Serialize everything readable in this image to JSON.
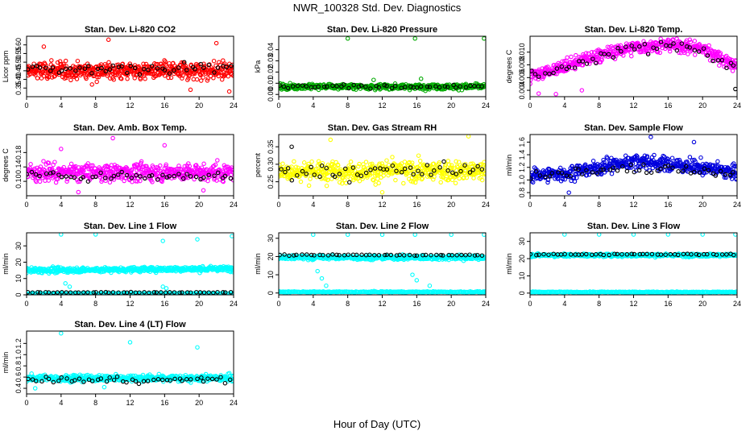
{
  "page": {
    "title": "NWR_100328  Std. Dev. Diagnostics",
    "xlabel": "Hour of Day (UTC)"
  },
  "chart_data": [
    {
      "type": "scatter",
      "title": "Stan. Dev. Li-820 CO2",
      "ylabel": "Licor ppm",
      "xlim": [
        0,
        24
      ],
      "ylim": [
        0.3,
        0.65
      ],
      "x_ticks": [
        "0",
        "4",
        "8",
        "12",
        "16",
        "20",
        "24"
      ],
      "y_ticks": [
        "0.35",
        "0.40",
        "0.45",
        "0.50",
        "0.55",
        "0.60"
      ],
      "series": [
        {
          "color": "#ff0000",
          "pattern": "band",
          "center": [
            [
              0,
              0.45
            ],
            [
              24,
              0.45
            ]
          ],
          "spread": 0.055,
          "outliers": [
            [
              2,
              0.59
            ],
            [
              9.5,
              0.63
            ],
            [
              22,
              0.61
            ],
            [
              23.5,
              0.33
            ],
            [
              19,
              0.34
            ]
          ],
          "count": 520
        },
        {
          "color": "#000000",
          "pattern": "band",
          "center": [
            [
              0,
              0.46
            ],
            [
              24,
              0.47
            ]
          ],
          "spread": 0.03,
          "count": 48
        }
      ]
    },
    {
      "type": "scatter",
      "title": "Stan. Dev. Li-820 Pressure",
      "ylabel": "kPa",
      "xlim": [
        0,
        24
      ],
      "ylim": [
        -0.002,
        0.052
      ],
      "x_ticks": [
        "0",
        "4",
        "8",
        "12",
        "16",
        "20",
        "24"
      ],
      "y_ticks": [
        "0.00",
        "0.01",
        "0.02",
        "0.03",
        "0.04"
      ],
      "series": [
        {
          "color": "#00aa00",
          "pattern": "band",
          "center": [
            [
              0,
              0.007
            ],
            [
              24,
              0.007
            ]
          ],
          "spread": 0.0025,
          "outliers": [
            [
              8,
              0.05
            ],
            [
              15.8,
              0.05
            ],
            [
              23.8,
              0.05
            ],
            [
              11,
              0.013
            ],
            [
              16.5,
              0.014
            ]
          ],
          "count": 520
        },
        {
          "color": "#000000",
          "pattern": "band",
          "center": [
            [
              0,
              0.007
            ],
            [
              24,
              0.007
            ]
          ],
          "spread": 0.0015,
          "count": 48
        }
      ]
    },
    {
      "type": "scatter",
      "title": "Stan. Dev. Li-820 Temp.",
      "ylabel": "degrees C",
      "xlim": [
        0,
        24
      ],
      "ylim": [
        0.003,
        0.0125
      ],
      "x_ticks": [
        "0",
        "4",
        "8",
        "12",
        "16",
        "20",
        "24"
      ],
      "y_ticks": [
        "0.004",
        "0.006",
        "0.008",
        "0.010"
      ],
      "series": [
        {
          "color": "#ff00ff",
          "pattern": "band",
          "center": [
            [
              0,
              0.0062
            ],
            [
              4,
              0.0078
            ],
            [
              8,
              0.0095
            ],
            [
              12,
              0.0108
            ],
            [
              16,
              0.0112
            ],
            [
              20,
              0.0106
            ],
            [
              24,
              0.0078
            ]
          ],
          "spread": 0.0011,
          "outliers": [
            [
              1,
              0.0035
            ],
            [
              3,
              0.0034
            ],
            [
              6,
              0.004
            ]
          ],
          "count": 520
        },
        {
          "color": "#000000",
          "pattern": "band",
          "center": [
            [
              0,
              0.006
            ],
            [
              4,
              0.0076
            ],
            [
              8,
              0.0093
            ],
            [
              12,
              0.0106
            ],
            [
              16,
              0.011
            ],
            [
              20,
              0.0104
            ],
            [
              24,
              0.0075
            ]
          ],
          "spread": 0.0009,
          "outliers": [
            [
              23.8,
              0.0042
            ]
          ],
          "count": 48
        }
      ]
    },
    {
      "type": "scatter",
      "title": "Stan. Dev. Amb. Box Temp.",
      "ylabel": "degrees C",
      "xlim": [
        0,
        24
      ],
      "ylim": [
        0.06,
        0.23
      ],
      "x_ticks": [
        "0",
        "4",
        "8",
        "12",
        "16",
        "20",
        "24"
      ],
      "y_ticks": [
        "0.10",
        "0.14",
        "0.18"
      ],
      "series": [
        {
          "color": "#ff00ff",
          "pattern": "band",
          "center": [
            [
              0,
              0.125
            ],
            [
              24,
              0.125
            ]
          ],
          "spread": 0.025,
          "outliers": [
            [
              10,
              0.22
            ],
            [
              16,
              0.2
            ],
            [
              4,
              0.19
            ],
            [
              6,
              0.07
            ],
            [
              20.5,
              0.075
            ]
          ],
          "count": 520
        },
        {
          "color": "#000000",
          "pattern": "band",
          "center": [
            [
              0,
              0.115
            ],
            [
              24,
              0.115
            ]
          ],
          "spread": 0.012,
          "count": 48
        }
      ]
    },
    {
      "type": "scatter",
      "title": "Stan. Dev. Gas Stream RH",
      "ylabel": "percent",
      "xlim": [
        0,
        24
      ],
      "ylim": [
        0.21,
        0.385
      ],
      "x_ticks": [
        "0",
        "4",
        "8",
        "12",
        "16",
        "20",
        "24"
      ],
      "y_ticks": [
        "0.25",
        "0.30",
        "0.35"
      ],
      "series": [
        {
          "color": "#ffff00",
          "pattern": "band",
          "center": [
            [
              0,
              0.28
            ],
            [
              24,
              0.28
            ]
          ],
          "spread": 0.03,
          "outliers": [
            [
              22,
              0.38
            ],
            [
              6,
              0.37
            ],
            [
              12,
              0.22
            ]
          ],
          "count": 520
        },
        {
          "color": "#000000",
          "pattern": "band",
          "center": [
            [
              0,
              0.28
            ],
            [
              24,
              0.28
            ]
          ],
          "spread": 0.025,
          "outliers": [
            [
              1.5,
              0.35
            ]
          ],
          "count": 48
        }
      ]
    },
    {
      "type": "scatter",
      "title": "Stan. Dev. Sample Flow",
      "ylabel": "ml/min",
      "xlim": [
        0,
        24
      ],
      "ylim": [
        0.75,
        1.72
      ],
      "x_ticks": [
        "0",
        "4",
        "8",
        "12",
        "16",
        "20",
        "24"
      ],
      "y_ticks": [
        "0.8",
        "1.0",
        "1.2",
        "1.4",
        "1.6"
      ],
      "series": [
        {
          "color": "#0000dd",
          "pattern": "band",
          "center": [
            [
              0,
              1.08
            ],
            [
              4,
              1.1
            ],
            [
              8,
              1.2
            ],
            [
              12,
              1.3
            ],
            [
              16,
              1.25
            ],
            [
              20,
              1.2
            ],
            [
              24,
              1.12
            ]
          ],
          "spread": 0.12,
          "outliers": [
            [
              14,
              1.68
            ],
            [
              4.5,
              0.8
            ],
            [
              19,
              1.6
            ]
          ],
          "count": 520
        },
        {
          "color": "#000000",
          "pattern": "band",
          "center": [
            [
              0,
              1.06
            ],
            [
              8,
              1.15
            ],
            [
              14,
              1.2
            ],
            [
              20,
              1.12
            ],
            [
              24,
              1.08
            ]
          ],
          "spread": 0.08,
          "count": 48
        }
      ]
    },
    {
      "type": "scatter",
      "title": "Stan. Dev. Line 1 Flow",
      "ylabel": "ml/min",
      "xlim": [
        0,
        24
      ],
      "ylim": [
        0,
        38
      ],
      "x_ticks": [
        "0",
        "4",
        "8",
        "12",
        "16",
        "20",
        "24"
      ],
      "y_ticks": [
        "0",
        "10",
        "20",
        "30"
      ],
      "series": [
        {
          "color": "#00ffff",
          "pattern": "band",
          "center": [
            [
              0,
              15
            ],
            [
              24,
              16
            ]
          ],
          "spread": 1.6,
          "outliers": [
            [
              4,
              37
            ],
            [
              8,
              37
            ],
            [
              15.8,
              33
            ],
            [
              19.8,
              34
            ],
            [
              23.8,
              36
            ],
            [
              4.5,
              7
            ],
            [
              5,
              5
            ],
            [
              15.8,
              5
            ],
            [
              16.2,
              4
            ]
          ],
          "count": 520
        },
        {
          "color": "#00ffff",
          "pattern": "line",
          "center": [
            [
              0,
              0.8
            ],
            [
              24,
              0.8
            ]
          ],
          "spread": 0.3,
          "count": 240
        },
        {
          "color": "#000000",
          "pattern": "line",
          "center": [
            [
              0,
              1.5
            ],
            [
              24,
              1.5
            ]
          ],
          "spread": 0.2,
          "count": 48
        }
      ]
    },
    {
      "type": "scatter",
      "title": "Stan. Dev. Line 2 Flow",
      "ylabel": "ml/min",
      "xlim": [
        0,
        24
      ],
      "ylim": [
        -1,
        33
      ],
      "x_ticks": [
        "0",
        "4",
        "8",
        "12",
        "16",
        "20",
        "24"
      ],
      "y_ticks": [
        "0",
        "10",
        "20",
        "30"
      ],
      "series": [
        {
          "color": "#00ffff",
          "pattern": "band",
          "center": [
            [
              0,
              19.5
            ],
            [
              24,
              19.5
            ]
          ],
          "spread": 1.3,
          "outliers": [
            [
              4,
              32
            ],
            [
              8,
              32
            ],
            [
              12,
              32
            ],
            [
              15.8,
              32
            ],
            [
              20,
              32
            ],
            [
              23.8,
              32
            ],
            [
              4.5,
              12
            ],
            [
              5,
              8
            ],
            [
              5.5,
              4
            ],
            [
              15.5,
              10
            ],
            [
              16,
              7
            ],
            [
              17.5,
              4
            ]
          ],
          "count": 520
        },
        {
          "color": "#00ffff",
          "pattern": "line",
          "center": [
            [
              0,
              0.6
            ],
            [
              24,
              0.6
            ]
          ],
          "spread": 0.3,
          "count": 240
        },
        {
          "color": "#000000",
          "pattern": "line",
          "center": [
            [
              0,
              20.8
            ],
            [
              24,
              20.8
            ]
          ],
          "spread": 0.3,
          "count": 48
        }
      ]
    },
    {
      "type": "scatter",
      "title": "Stan. Dev. Line 3 Flow",
      "ylabel": "ml/min",
      "xlim": [
        0,
        24
      ],
      "ylim": [
        -1,
        35
      ],
      "x_ticks": [
        "0",
        "4",
        "8",
        "12",
        "16",
        "20",
        "24"
      ],
      "y_ticks": [
        "0",
        "10",
        "20",
        "30"
      ],
      "series": [
        {
          "color": "#00ffff",
          "pattern": "band",
          "center": [
            [
              0,
              22
            ],
            [
              24,
              22
            ]
          ],
          "spread": 0.9,
          "outliers": [
            [
              4,
              34
            ],
            [
              8,
              34
            ],
            [
              12,
              34
            ],
            [
              16,
              34
            ],
            [
              20,
              34
            ],
            [
              23.8,
              34
            ]
          ],
          "count": 520
        },
        {
          "color": "#00ffff",
          "pattern": "line",
          "center": [
            [
              0,
              0.6
            ],
            [
              24,
              0.6
            ]
          ],
          "spread": 0.3,
          "count": 240
        },
        {
          "color": "#000000",
          "pattern": "line",
          "center": [
            [
              0,
              22.5
            ],
            [
              24,
              22.5
            ]
          ],
          "spread": 0.4,
          "count": 48
        }
      ]
    },
    {
      "type": "scatter",
      "title": "Stan. Dev. Line 4 (LT) Flow",
      "ylabel": "ml/min",
      "xlim": [
        0,
        24
      ],
      "ylim": [
        0.3,
        1.42
      ],
      "x_ticks": [
        "0",
        "4",
        "8",
        "12",
        "16",
        "20",
        "24"
      ],
      "y_ticks": [
        "0.4",
        "0.6",
        "0.8",
        "1.0",
        "1.2"
      ],
      "series": [
        {
          "color": "#00ffff",
          "pattern": "band",
          "center": [
            [
              0,
              0.58
            ],
            [
              24,
              0.58
            ]
          ],
          "spread": 0.06,
          "outliers": [
            [
              4,
              1.38
            ],
            [
              12,
              1.22
            ],
            [
              19.8,
              1.13
            ],
            [
              1,
              0.4
            ],
            [
              9,
              0.42
            ]
          ],
          "count": 520
        },
        {
          "color": "#000000",
          "pattern": "band",
          "center": [
            [
              0,
              0.55
            ],
            [
              24,
              0.55
            ]
          ],
          "spread": 0.06,
          "count": 48
        }
      ]
    }
  ]
}
